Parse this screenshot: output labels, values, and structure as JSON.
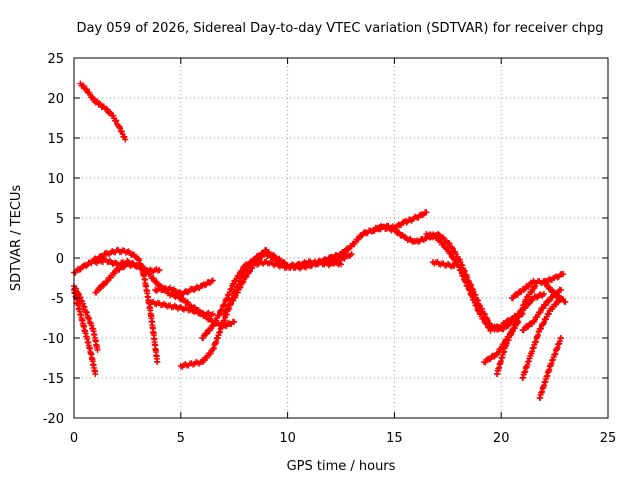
{
  "chart_data": {
    "type": "scatter",
    "title": "Day 059 of 2026, Sidereal Day-to-day VTEC variation (SDTVAR) for receiver chpg",
    "xlabel": "GPS time / hours",
    "ylabel": "SDTVAR / TECUs",
    "xlim": [
      0,
      25
    ],
    "ylim": [
      -20,
      25
    ],
    "xticks": [
      0,
      5,
      10,
      15,
      20,
      25
    ],
    "yticks": [
      -20,
      -15,
      -10,
      -5,
      0,
      5,
      10,
      15,
      20,
      25
    ],
    "grid": true,
    "marker": "+",
    "color": "#ff0000",
    "series": [
      {
        "name": "s1",
        "x": [
          0.3,
          0.6,
          0.9,
          1.2,
          1.5,
          1.8,
          2.1,
          2.4
        ],
        "y": [
          21.8,
          21.0,
          19.8,
          19.2,
          18.6,
          17.8,
          16.5,
          14.8
        ]
      },
      {
        "name": "s2",
        "x": [
          0.0,
          0.5,
          1.0,
          1.5,
          2.0,
          2.5,
          3.0,
          3.3,
          3.6,
          3.9
        ],
        "y": [
          -1.8,
          -1.0,
          -0.2,
          0.5,
          0.9,
          0.8,
          0.0,
          -2.5,
          -7.0,
          -13.0
        ]
      },
      {
        "name": "s3",
        "x": [
          0.0,
          0.2,
          0.4,
          0.6,
          0.8,
          1.0
        ],
        "y": [
          -4.0,
          -6.0,
          -8.0,
          -10.0,
          -12.0,
          -14.5
        ]
      },
      {
        "name": "s4",
        "x": [
          0.0,
          0.3,
          0.6,
          0.9,
          1.1
        ],
        "y": [
          -3.5,
          -5.0,
          -7.0,
          -9.0,
          -11.5
        ]
      },
      {
        "name": "s5",
        "x": [
          1.0,
          1.5,
          2.0,
          2.5,
          3.0,
          3.5,
          4.0
        ],
        "y": [
          -4.3,
          -3.0,
          -1.5,
          -0.8,
          -1.0,
          -1.6,
          -1.5
        ]
      },
      {
        "name": "s6",
        "x": [
          1.0,
          1.5,
          2.0,
          2.5,
          3.0,
          3.5,
          4.0,
          4.5,
          5.0,
          5.5,
          6.0,
          6.5,
          7.0,
          7.5
        ],
        "y": [
          -0.5,
          -0.3,
          -0.8,
          -0.5,
          -1.0,
          -2.0,
          -3.5,
          -4.5,
          -5.0,
          -6.0,
          -7.0,
          -8.0,
          -8.5,
          -8.0
        ]
      },
      {
        "name": "s7",
        "x": [
          3.5,
          4.5,
          5.5,
          6.0,
          6.5
        ],
        "y": [
          -5.5,
          -6.0,
          -6.5,
          -7.0,
          -7.0
        ]
      },
      {
        "name": "s8",
        "x": [
          3.8,
          4.5,
          5.0,
          5.5,
          6.0,
          6.5
        ],
        "y": [
          -4.0,
          -3.8,
          -4.5,
          -4.0,
          -3.5,
          -2.8
        ]
      },
      {
        "name": "s9",
        "x": [
          5.0,
          6.0,
          6.5,
          7.0,
          7.5,
          8.0,
          8.5,
          9.0,
          9.5,
          10.0,
          10.5,
          11.0,
          11.5,
          12.0,
          12.5,
          13.0,
          13.5,
          14.0,
          14.5,
          15.0,
          15.5,
          16.0,
          16.5
        ],
        "y": [
          -13.5,
          -13.0,
          -11.5,
          -8.0,
          -4.5,
          -1.5,
          0.0,
          0.8,
          0.0,
          -1.0,
          -1.2,
          -1.0,
          -0.5,
          0.0,
          0.5,
          1.5,
          3.0,
          3.5,
          4.0,
          3.8,
          4.5,
          5.0,
          5.7
        ]
      },
      {
        "name": "s10",
        "x": [
          6.0,
          6.5,
          7.0,
          7.5,
          8.0,
          8.5,
          9.0
        ],
        "y": [
          -10.0,
          -8.5,
          -6.0,
          -3.0,
          -1.0,
          -0.2,
          1.0
        ]
      },
      {
        "name": "s11",
        "x": [
          7.0,
          7.5,
          8.0,
          8.5,
          9.0
        ],
        "y": [
          -7.0,
          -5.0,
          -2.5,
          -0.5,
          0.8
        ]
      },
      {
        "name": "s12",
        "x": [
          8.0,
          9.0,
          10.0,
          11.0,
          12.0,
          13.0
        ],
        "y": [
          -1.0,
          -0.5,
          -1.2,
          -0.5,
          -0.8,
          0.5
        ]
      },
      {
        "name": "s13",
        "x": [
          9.0,
          10.0,
          11.0,
          12.0,
          12.5
        ],
        "y": [
          0.5,
          -1.0,
          -0.8,
          -0.3,
          -0.8
        ]
      },
      {
        "name": "s14",
        "x": [
          14.0,
          14.5,
          15.0,
          15.5,
          16.0,
          16.5,
          17.0,
          17.5,
          18.0,
          18.5,
          19.0,
          19.5,
          20.0,
          20.5,
          21.0,
          21.5,
          22.0
        ],
        "y": [
          3.5,
          3.8,
          3.5,
          2.5,
          2.0,
          2.5,
          3.0,
          2.0,
          0.0,
          -3.0,
          -6.0,
          -8.5,
          -9.0,
          -8.0,
          -6.5,
          -5.0,
          -4.5
        ]
      },
      {
        "name": "s15",
        "x": [
          16.5,
          17.0,
          17.5,
          18.0,
          18.5,
          19.0,
          19.5,
          20.0,
          20.5,
          21.0
        ],
        "y": [
          3.0,
          2.5,
          1.0,
          -1.0,
          -4.0,
          -7.0,
          -9.0,
          -8.5,
          -7.5,
          -7.0
        ]
      },
      {
        "name": "s16",
        "x": [
          16.8,
          17.3,
          17.8
        ],
        "y": [
          -0.5,
          -0.8,
          -1.0
        ]
      },
      {
        "name": "s17",
        "x": [
          19.2,
          19.8,
          20.3,
          20.8
        ],
        "y": [
          -13.0,
          -12.0,
          -10.0,
          -8.0
        ]
      },
      {
        "name": "s18",
        "x": [
          19.8,
          20.2,
          20.7,
          21.2,
          21.6
        ],
        "y": [
          -14.5,
          -11.0,
          -8.0,
          -5.0,
          -3.5
        ]
      },
      {
        "name": "s19",
        "x": [
          20.5,
          21.0,
          21.5,
          22.0,
          22.5,
          22.9
        ],
        "y": [
          -5.0,
          -4.0,
          -3.0,
          -3.0,
          -2.5,
          -2.0
        ]
      },
      {
        "name": "s20",
        "x": [
          21.0,
          21.5,
          22.0,
          22.5,
          22.8
        ],
        "y": [
          -9.0,
          -8.0,
          -6.0,
          -4.5,
          -4.0
        ]
      },
      {
        "name": "s21",
        "x": [
          21.0,
          21.4,
          21.8,
          22.3,
          22.8
        ],
        "y": [
          -15.0,
          -12.0,
          -9.0,
          -6.5,
          -5.0
        ]
      },
      {
        "name": "s22",
        "x": [
          21.8,
          22.3,
          22.8
        ],
        "y": [
          -17.5,
          -13.5,
          -10.0
        ]
      },
      {
        "name": "s23",
        "x": [
          22.0,
          22.5,
          23.0
        ],
        "y": [
          -3.0,
          -4.5,
          -5.5
        ]
      }
    ]
  }
}
